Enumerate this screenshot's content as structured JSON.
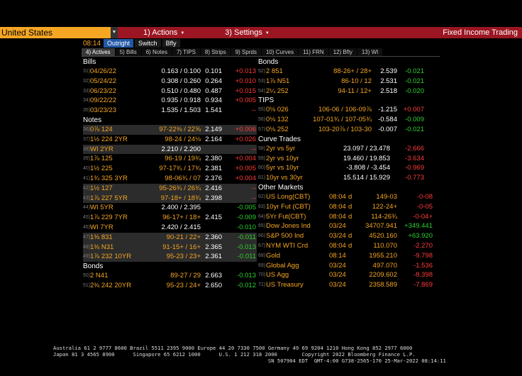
{
  "topbar": {
    "country": "United States",
    "menus": [
      {
        "num": "1)",
        "label": "Actions"
      },
      {
        "num": "3)",
        "label": "Settings"
      }
    ],
    "app_title": "Fixed Income Trading"
  },
  "row2": {
    "time": "08:14",
    "pills": [
      "Outright",
      "Switch",
      "Bfly"
    ]
  },
  "tabs": [
    "4) Actives",
    "5) Bills",
    "6) Notes",
    "7) TIPS",
    "8) Strips",
    "9) Sprds",
    "10) Curves",
    "11) FRN",
    "12) Bfly",
    "13) WI"
  ],
  "left": {
    "bills_header": "Bills",
    "bills": [
      {
        "n": "31)",
        "name": "04/26/22",
        "bid": "0.163 / 0.100",
        "yld": "0.101",
        "chg": "+0.013",
        "cls": "pos"
      },
      {
        "n": "32)",
        "name": "05/24/22",
        "bid": "0.308 / 0.260",
        "yld": "0.264",
        "chg": "+0.010",
        "cls": "pos"
      },
      {
        "n": "33)",
        "name": "06/23/22",
        "bid": "0.510 / 0.480",
        "yld": "0.487",
        "chg": "+0.015",
        "cls": "pos"
      },
      {
        "n": "34)",
        "name": "09/22/22",
        "bid": "0.935 / 0.918",
        "yld": "0.934",
        "chg": "+0.005",
        "cls": "pos"
      },
      {
        "n": "35)",
        "name": "03/23/23",
        "bid": "1.535 / 1.503",
        "yld": "1.541",
        "chg": "--",
        "cls": "flat"
      }
    ],
    "notes_header": "Notes",
    "notes": [
      {
        "n": "36)",
        "name": "0⅞ 124",
        "bid": "97-22⅜ / 22⅝",
        "yld": "2.149",
        "chg": "+0.006",
        "cls": "pos",
        "shaded": true
      },
      {
        "n": "37)",
        "name": "1½ 224 2YR",
        "bid": "98-24 / 24⅛",
        "yld": "2.164",
        "chg": "+0.026",
        "cls": "pos",
        "shaded": false
      },
      {
        "n": "38)",
        "name": "WI 2YR",
        "bid": "2.210 / 2.200",
        "yld": "",
        "chg": "--",
        "cls": "flat",
        "shaded": true
      },
      {
        "n": "39)",
        "name": "1⅞ 125",
        "bid": "96-19 / 19¾",
        "yld": "2.380",
        "chg": "+0.004",
        "cls": "pos",
        "shaded": false
      },
      {
        "n": "40)",
        "name": "1½ 225",
        "bid": "97-17¾ / 17¾",
        "yld": "2.381",
        "chg": "+0.005",
        "cls": "pos",
        "shaded": false
      },
      {
        "n": "41)",
        "name": "1¾ 325 3YR",
        "bid": "98-06¾ / 07",
        "yld": "2.376",
        "chg": "+0.004",
        "cls": "pos",
        "shaded": false
      },
      {
        "n": "42)",
        "name": "1½ 127",
        "bid": "95-26¾ / 26¾",
        "yld": "2.416",
        "chg": "--",
        "cls": "flat",
        "shaded": true
      },
      {
        "n": "43)",
        "name": "1⅞ 227 5YR",
        "bid": "97-18+ / 18¾",
        "yld": "2.398",
        "chg": "--",
        "cls": "flat",
        "shaded": true
      },
      {
        "n": "44)",
        "name": "WI 5YR",
        "bid": "2.400 / 2.395",
        "yld": "",
        "chg": "-0.005",
        "cls": "neg",
        "shaded": false
      },
      {
        "n": "45)",
        "name": "1⅞ 229 7YR",
        "bid": "96-17+ / 18+",
        "yld": "2.415",
        "chg": "-0.009",
        "cls": "neg",
        "shaded": false
      },
      {
        "n": "46)",
        "name": "WI 7YR",
        "bid": "2.420 / 2.415",
        "yld": "",
        "chg": "-0.010",
        "cls": "neg",
        "shaded": false
      },
      {
        "n": "47)",
        "name": "1⅜ 831",
        "bid": "90-21 / 22+",
        "yld": "2.360",
        "chg": "-0.011",
        "cls": "neg",
        "shaded": true
      },
      {
        "n": "48)",
        "name": "1⅜ N31",
        "bid": "91-15+ / 16+",
        "yld": "2.365",
        "chg": "-0.013",
        "cls": "neg",
        "shaded": true
      },
      {
        "n": "49)",
        "name": "1⅞ 232 10YR",
        "bid": "95-23 / 23+",
        "yld": "2.361",
        "chg": "-0.011",
        "cls": "neg",
        "shaded": true
      }
    ],
    "bonds_header": "Bonds",
    "bonds": [
      {
        "n": "50)",
        "name": "2 N41",
        "bid": "89-27 / 29",
        "yld": "2.663",
        "chg": "-0.013",
        "cls": "neg"
      },
      {
        "n": "51)",
        "name": "2⅜ 242 20YR",
        "bid": "95-23 / 24+",
        "yld": "2.650",
        "chg": "-0.012",
        "cls": "neg"
      }
    ]
  },
  "right": {
    "bonds_header": "Bonds",
    "bonds": [
      {
        "n": "52)",
        "name": "2 851",
        "bid": "88-26+ / 28+",
        "yld": "2.539",
        "chg": "-0.021",
        "cls": "neg"
      },
      {
        "n": "53)",
        "name": "1⅞ N51",
        "bid": "86-10 / 12",
        "yld": "2.531",
        "chg": "-0.021",
        "cls": "neg"
      },
      {
        "n": "54)",
        "name": "2¼ 252",
        "bid": "94-11 / 12+",
        "yld": "2.518",
        "chg": "-0.020",
        "cls": "neg"
      }
    ],
    "tips_header": "TIPS",
    "tips": [
      {
        "n": "55)",
        "name": "0⅛ 026",
        "bid": "106-06 / 106-09⅞",
        "yld": "-1.215",
        "chg": "+0.007",
        "cls": "pos"
      },
      {
        "n": "56)",
        "name": "0⅛ 132",
        "bid": "107-01¾ / 107-05¾",
        "yld": "-0.584",
        "chg": "-0.009",
        "cls": "neg"
      },
      {
        "n": "57)",
        "name": "0⅛ 252",
        "bid": "103-20⅞ / 103-30",
        "yld": "-0.007",
        "chg": "-0.021",
        "cls": "neg"
      }
    ],
    "curves_header": "Curve Trades",
    "curves": [
      {
        "n": "58)",
        "name": "2yr vs 5yr",
        "bid": "23.097 / 23.478",
        "chg": "-2.666",
        "cls": "pos"
      },
      {
        "n": "59)",
        "name": "2yr vs 10yr",
        "bid": "19.460 / 19.853",
        "chg": "-3.634",
        "cls": "pos"
      },
      {
        "n": "60)",
        "name": "5yr vs 10yr",
        "bid": "-3.808 / -3.454",
        "chg": "-0.969",
        "cls": "pos"
      },
      {
        "n": "61)",
        "name": "10yr vs 30yr",
        "bid": "15.514 / 15.929",
        "chg": "-0.773",
        "cls": "pos"
      }
    ],
    "other_header": "Other Markets",
    "other": [
      {
        "n": "62)",
        "name": "US Long(CBT)",
        "time": "08:04",
        "flag": "d",
        "px": "149-03",
        "chg": "-0-08",
        "cls": "pos"
      },
      {
        "n": "63)",
        "name": "10yr Fut (CBT)",
        "time": "08:04",
        "flag": "d",
        "px": "122-24+",
        "chg": "-0-05",
        "cls": "pos"
      },
      {
        "n": "64)",
        "name": "5Yr Fut(CBT)",
        "time": "08:04",
        "flag": "d",
        "px": "114-26¾",
        "chg": "-0-04+",
        "cls": "pos"
      },
      {
        "n": "65)",
        "name": "Dow Jones Ind",
        "time": "03/24",
        "flag": "",
        "px": "34707.941",
        "chg": "+349.441",
        "cls": "neg"
      },
      {
        "n": "66)",
        "name": "S&P 500 Ind",
        "time": "03/24",
        "flag": "d",
        "px": "4520.160",
        "chg": "+63.920",
        "cls": "neg"
      },
      {
        "n": "67)",
        "name": "NYM WTI Crd",
        "time": "08:04",
        "flag": "d",
        "px": "110.070",
        "chg": "-2.270",
        "cls": "pos"
      },
      {
        "n": "68)",
        "name": "Gold",
        "time": "08:14",
        "flag": "",
        "px": "1955.210",
        "chg": "-9.798",
        "cls": "pos"
      },
      {
        "n": "69)",
        "name": "Global Agg",
        "time": "03/24",
        "flag": "",
        "px": "497.070",
        "chg": "-1.536",
        "cls": "pos"
      },
      {
        "n": "70)",
        "name": "US Agg",
        "time": "03/24",
        "flag": "",
        "px": "2209.602",
        "chg": "-8.398",
        "cls": "pos"
      },
      {
        "n": "71)",
        "name": "US Treasury",
        "time": "03/24",
        "flag": "",
        "px": "2358.589",
        "chg": "-7.869",
        "cls": "pos"
      }
    ]
  },
  "footer": {
    "line1": "Australia 61 2 9777 8600 Brazil 5511 2395 9000 Europe 44 20 7330 7500 Germany 49 69 9204 1210 Hong Kong 852 2977 6000",
    "line2": "Japan 81 3 4565 8900      Singapore 65 6212 1000      U.S. 1 212 318 2000        Copyright 2022 Bloomberg Finance L.P.",
    "line3": "                                                                      SN 507904 EDT  GMT-4:00 G738-2565-170 25-Mar-2022 08:14:11"
  }
}
